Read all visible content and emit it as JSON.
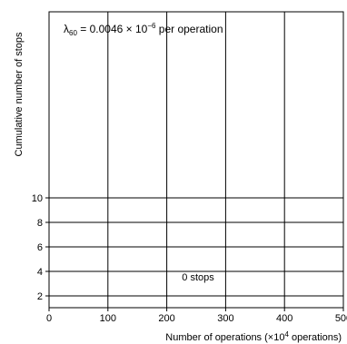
{
  "chart_data": {
    "type": "line",
    "annotation": {
      "symbol": "λ",
      "subscript": "60",
      "text_before_exp": " = 0.0046 × 10",
      "exponent": "−6",
      "text_after_exp": " per operation"
    },
    "xlabel": {
      "before": "Number of operations (×10",
      "sup": "4",
      "after": " operations)"
    },
    "ylabel": "Cumulative number of stops",
    "x_ticks": [
      "0",
      "100",
      "200",
      "300",
      "400",
      "500"
    ],
    "y_ticks": [
      "2",
      "4",
      "6",
      "8",
      "10"
    ],
    "xlim": [
      0,
      500
    ],
    "ylim": [
      0,
      25
    ],
    "vertical_gridlines_x": [
      100,
      200,
      300,
      400
    ],
    "horizontal_gridlines_y": [
      2,
      4,
      6,
      8,
      10
    ],
    "series": [
      {
        "x": [
          0,
          500
        ],
        "y": [
          0,
          0
        ],
        "label": "0 stops"
      }
    ],
    "grid": true
  }
}
